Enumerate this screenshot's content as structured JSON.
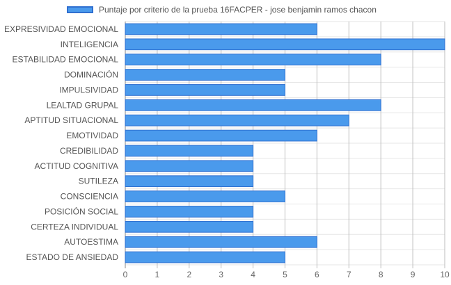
{
  "chart_data": {
    "type": "bar",
    "orientation": "horizontal",
    "legend_position": "top",
    "grid": true,
    "xlim": [
      0,
      10
    ],
    "x_ticks": [
      "0",
      "1",
      "2",
      "3",
      "4",
      "5",
      "6",
      "7",
      "8",
      "9",
      "10"
    ],
    "categories": [
      "EXPRESIVIDAD EMOCIONAL",
      "INTELIGENCIA",
      "ESTABILIDAD EMOCIONAL",
      "DOMINACIÓN",
      "IMPULSIVIDAD",
      "LEALTAD GRUPAL",
      "APTITUD SITUACIONAL",
      "EMOTIVIDAD",
      "CREDIBILIDAD",
      "ACTITUD COGNITIVA",
      "SUTILEZA",
      "CONSCIENCIA",
      "POSICIÓN SOCIAL",
      "CERTEZA INDIVIDUAL",
      "AUTOESTIMA",
      "ESTADO DE ANSIEDAD"
    ],
    "series": [
      {
        "name": "Puntaje por criterio de la prueba 16FACPER - jose benjamin ramos chacon",
        "values": [
          6,
          10,
          8,
          5,
          5,
          8,
          7,
          6,
          4,
          4,
          4,
          5,
          4,
          4,
          6,
          5
        ]
      }
    ],
    "colors": {
      "bar_fill": "#4a9aec",
      "bar_stroke": "#2f6fd0",
      "grid": "#e6e6e6",
      "axis": "#888888"
    }
  }
}
